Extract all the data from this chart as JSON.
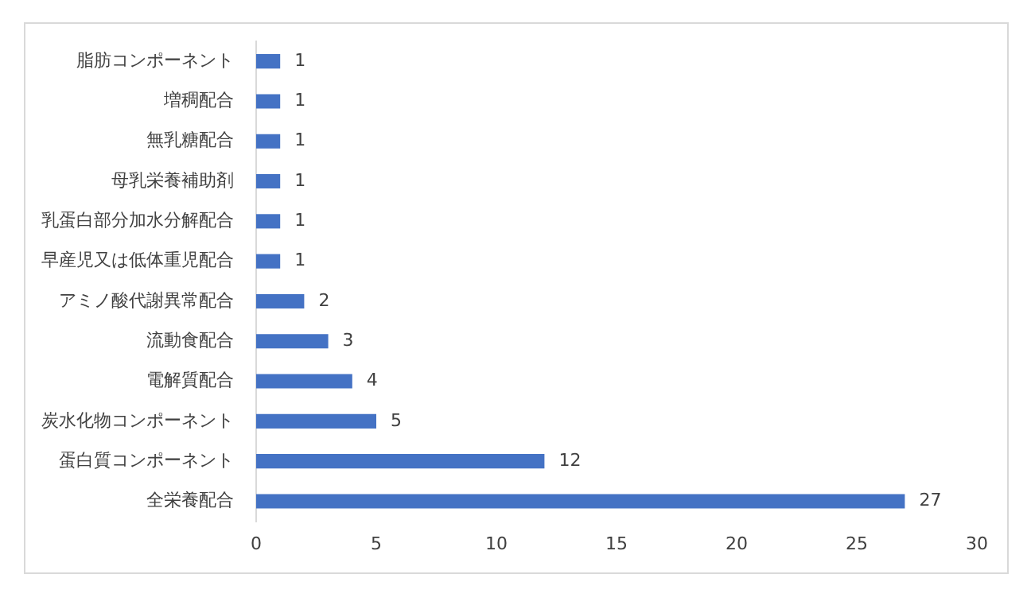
{
  "chart_data": {
    "type": "bar",
    "orientation": "horizontal",
    "categories": [
      "脂肪コンポーネント",
      "増稠配合",
      "無乳糖配合",
      "母乳栄養補助剤",
      "乳蛋白部分加水分解配合",
      "早産児又は低体重児配合",
      "アミノ酸代謝異常配合",
      "流動食配合",
      "電解質配合",
      "炭水化物コンポーネント",
      "蛋白質コンポーネント",
      "全栄養配合"
    ],
    "values": [
      1,
      1,
      1,
      1,
      1,
      1,
      2,
      3,
      4,
      5,
      12,
      27
    ],
    "color": "#4472c4",
    "xlim": [
      0,
      30
    ],
    "xticks": [
      0,
      5,
      10,
      15,
      20,
      25,
      30
    ],
    "grid": false,
    "legend": false,
    "data_labels": true
  }
}
